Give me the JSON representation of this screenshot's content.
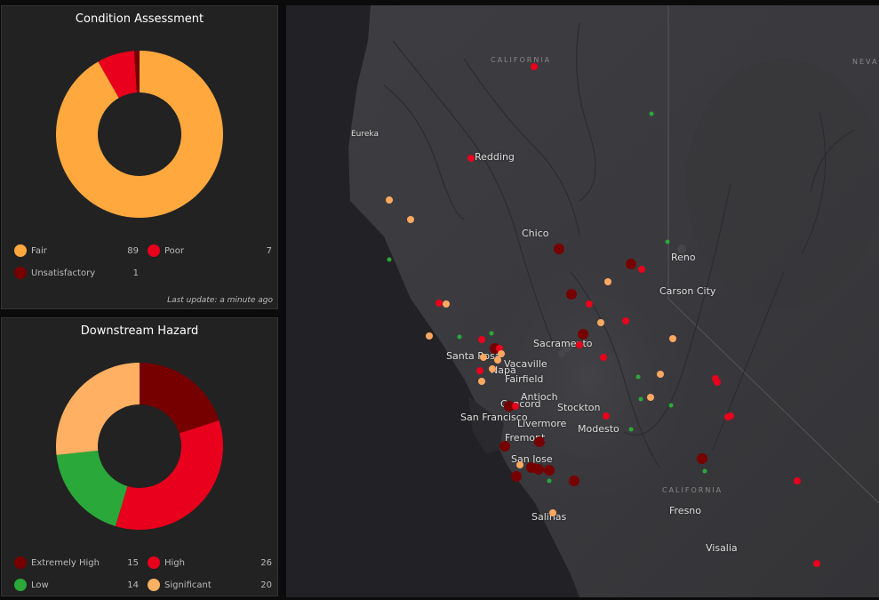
{
  "condition": {
    "title": "Condition Assessment",
    "update": "Last update: a minute ago",
    "items": [
      {
        "label": "Fair",
        "count": "89",
        "value": 89,
        "color": "#ffa83e"
      },
      {
        "label": "Poor",
        "count": "7",
        "value": 7,
        "color": "#e8001c"
      },
      {
        "label": "Unsatisfactory",
        "count": "1",
        "value": 1,
        "color": "#760000"
      }
    ]
  },
  "hazard": {
    "title": "Downstream Hazard",
    "items": [
      {
        "label": "Extremely High",
        "count": "15",
        "value": 15,
        "color": "#760000"
      },
      {
        "label": "High",
        "count": "26",
        "value": 26,
        "color": "#e8001c"
      },
      {
        "label": "Low",
        "count": "14",
        "value": 14,
        "color": "#2aa83a"
      },
      {
        "label": "Significant",
        "count": "20",
        "value": 20,
        "color": "#ffb063"
      }
    ]
  },
  "map": {
    "states": [
      "CALIFORNIA",
      "NEVA",
      "CALIFORNIA"
    ],
    "cities": [
      "Eureka",
      "Redding",
      "Chico",
      "Reno",
      "Carson City",
      "Sacramento",
      "Santa Rosa",
      "Vacaville",
      "Napa",
      "Fairfield",
      "Antioch",
      "Concord",
      "Stockton",
      "San Francisco",
      "Livermore",
      "Modesto",
      "Fremont",
      "San Jose",
      "Salinas",
      "Fresno",
      "Visalia"
    ]
  }
}
